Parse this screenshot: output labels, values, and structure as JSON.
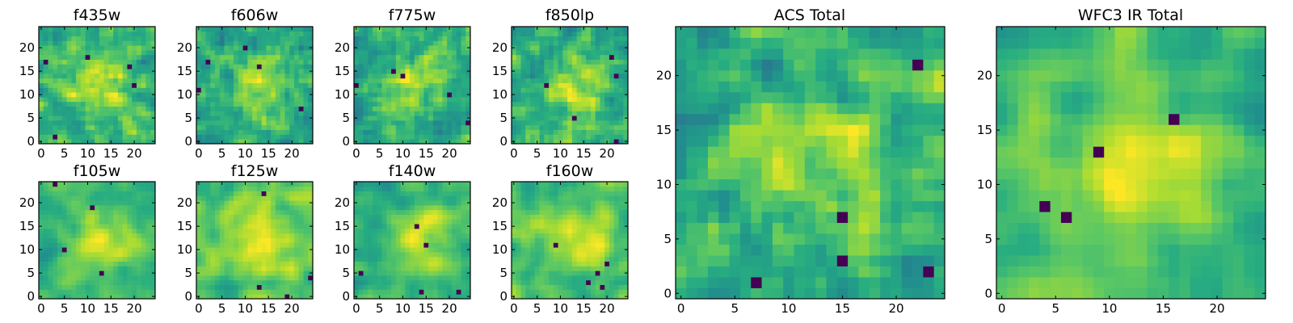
{
  "chart_data": [
    {
      "type": "heatmap",
      "title": "f435w",
      "x_ticks": [
        "0",
        "5",
        "10",
        "15",
        "20"
      ],
      "y_ticks": [
        "0",
        "5",
        "10",
        "15",
        "20"
      ],
      "xlim": [
        0,
        24
      ],
      "ylim": [
        0,
        24
      ],
      "colormap": "viridis",
      "grid": false,
      "seed": 435,
      "smooth": 0.2
    },
    {
      "type": "heatmap",
      "title": "f606w",
      "x_ticks": [
        "0",
        "5",
        "10",
        "15",
        "20"
      ],
      "y_ticks": [
        "0",
        "5",
        "10",
        "15",
        "20"
      ],
      "xlim": [
        0,
        24
      ],
      "ylim": [
        0,
        24
      ],
      "colormap": "viridis",
      "grid": false,
      "seed": 606,
      "smooth": 0.25
    },
    {
      "type": "heatmap",
      "title": "f775w",
      "x_ticks": [
        "0",
        "5",
        "10",
        "15",
        "20"
      ],
      "y_ticks": [
        "0",
        "5",
        "10",
        "15",
        "20"
      ],
      "xlim": [
        0,
        24
      ],
      "ylim": [
        0,
        24
      ],
      "colormap": "viridis",
      "grid": false,
      "seed": 775,
      "smooth": 0.3
    },
    {
      "type": "heatmap",
      "title": "f850lp",
      "x_ticks": [
        "0",
        "5",
        "10",
        "15",
        "20"
      ],
      "y_ticks": [
        "0",
        "5",
        "10",
        "15",
        "20"
      ],
      "xlim": [
        0,
        24
      ],
      "ylim": [
        0,
        24
      ],
      "colormap": "viridis",
      "grid": false,
      "seed": 850,
      "smooth": 0.3
    },
    {
      "type": "heatmap",
      "title": "f105w",
      "x_ticks": [
        "0",
        "5",
        "10",
        "15",
        "20"
      ],
      "y_ticks": [
        "0",
        "5",
        "10",
        "15",
        "20"
      ],
      "xlim": [
        0,
        24
      ],
      "ylim": [
        0,
        24
      ],
      "colormap": "viridis",
      "grid": false,
      "seed": 105,
      "smooth": 0.55
    },
    {
      "type": "heatmap",
      "title": "f125w",
      "x_ticks": [
        "0",
        "5",
        "10",
        "15",
        "20"
      ],
      "y_ticks": [
        "0",
        "5",
        "10",
        "15",
        "20"
      ],
      "xlim": [
        0,
        24
      ],
      "ylim": [
        0,
        24
      ],
      "colormap": "viridis",
      "grid": false,
      "seed": 125,
      "smooth": 0.55
    },
    {
      "type": "heatmap",
      "title": "f140w",
      "x_ticks": [
        "0",
        "5",
        "10",
        "15",
        "20"
      ],
      "y_ticks": [
        "0",
        "5",
        "10",
        "15",
        "20"
      ],
      "xlim": [
        0,
        24
      ],
      "ylim": [
        0,
        24
      ],
      "colormap": "viridis",
      "grid": false,
      "seed": 140,
      "smooth": 0.5
    },
    {
      "type": "heatmap",
      "title": "f160w",
      "x_ticks": [
        "0",
        "5",
        "10",
        "15",
        "20"
      ],
      "y_ticks": [
        "0",
        "5",
        "10",
        "15",
        "20"
      ],
      "xlim": [
        0,
        24
      ],
      "ylim": [
        0,
        24
      ],
      "colormap": "viridis",
      "grid": false,
      "seed": 160,
      "smooth": 0.5
    },
    {
      "type": "heatmap",
      "title": "ACS Total",
      "x_ticks": [
        "0",
        "5",
        "10",
        "15",
        "20"
      ],
      "y_ticks": [
        "0",
        "5",
        "10",
        "15",
        "20"
      ],
      "xlim": [
        0,
        24
      ],
      "ylim": [
        0,
        24
      ],
      "colormap": "viridis",
      "grid": false,
      "seed": 1001,
      "smooth": 0.4
    },
    {
      "type": "heatmap",
      "title": "WFC3 IR Total",
      "x_ticks": [
        "0",
        "5",
        "10",
        "15",
        "20"
      ],
      "y_ticks": [
        "0",
        "5",
        "10",
        "15",
        "20"
      ],
      "xlim": [
        0,
        24
      ],
      "ylim": [
        0,
        24
      ],
      "colormap": "viridis",
      "grid": false,
      "seed": 2002,
      "smooth": 0.7
    }
  ]
}
